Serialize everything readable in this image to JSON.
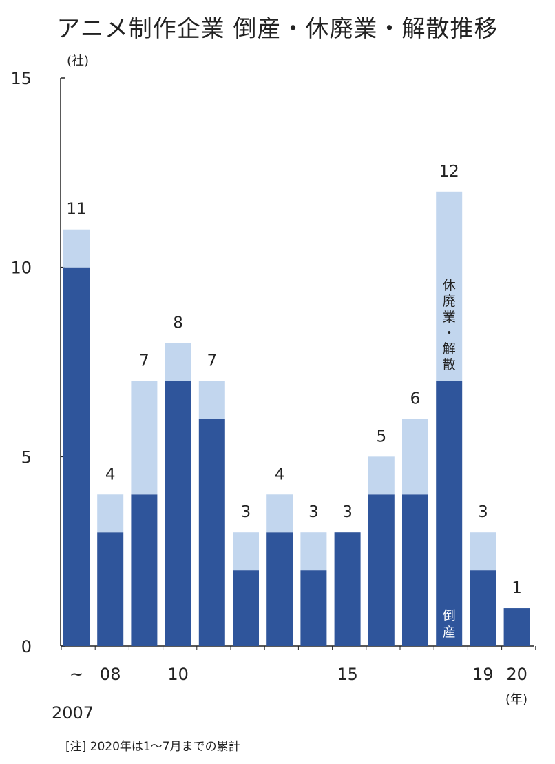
{
  "chart_data": {
    "type": "bar",
    "title": "アニメ制作企業 倒産・休廃業・解散推移",
    "y_unit": "(社)",
    "x_unit": "(年)",
    "ylim": [
      0,
      15
    ],
    "y_ticks": [
      0,
      5,
      10,
      15
    ],
    "categories": [
      "~2007",
      "2008",
      "2009",
      "2010",
      "2011",
      "2012",
      "2013",
      "2014",
      "2015",
      "2016",
      "2017",
      "2018",
      "2019",
      "2020"
    ],
    "x_tick_labels": [
      "~",
      "08",
      "",
      "10",
      "",
      "",
      "",
      "",
      "15",
      "",
      "",
      "",
      "19",
      "20"
    ],
    "x_first_label_year": "2007",
    "stacked": true,
    "series": [
      {
        "name": "倒産",
        "color": "#2f559b",
        "values": [
          10,
          3,
          4,
          7,
          6,
          2,
          3,
          2,
          3,
          4,
          4,
          7,
          2,
          1
        ]
      },
      {
        "name": "休廃業・解散",
        "color": "#c2d6ee",
        "values": [
          1,
          1,
          3,
          1,
          1,
          1,
          1,
          1,
          0,
          1,
          2,
          5,
          1,
          0
        ]
      }
    ],
    "totals": [
      11,
      4,
      7,
      8,
      7,
      3,
      4,
      3,
      3,
      5,
      6,
      12,
      3,
      1
    ],
    "grid": false,
    "legend": "inline labels inside 2018 bar"
  },
  "note": "[注] 2020年は1～7月までの累計"
}
